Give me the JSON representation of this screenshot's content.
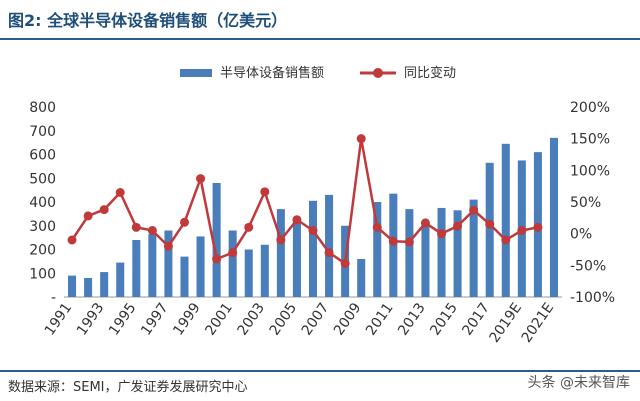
{
  "title": "图2:  全球半导体设备销售额（亿美元）",
  "source": "数据来源：SEMI，广发证券发展研究中心",
  "watermark": "头条 @未来智库",
  "colors": {
    "bar": "#4a7ebb",
    "line": "#c0393b",
    "grid": "#d9d9d9",
    "title": "#1f4e79"
  },
  "chart_data": {
    "type": "bar",
    "categories": [
      "1991",
      "1992",
      "1993",
      "1994",
      "1995",
      "1996",
      "1997",
      "1998",
      "1999",
      "2000",
      "2001",
      "2002",
      "2003",
      "2004",
      "2005",
      "2006",
      "2007",
      "2008",
      "2009",
      "2010",
      "2011",
      "2012",
      "2013",
      "2014",
      "2015",
      "2016",
      "2017",
      "2018",
      "2019E",
      "2020E",
      "2021E"
    ],
    "x_tick_labels": [
      "1991",
      "1993",
      "1995",
      "1997",
      "1999",
      "2001",
      "2003",
      "2005",
      "2007",
      "2009",
      "2011",
      "2013",
      "2015",
      "2017",
      "2019E",
      "2021E"
    ],
    "series": [
      {
        "name": "半导体设备销售额",
        "type": "bar",
        "axis": "left",
        "values": [
          90,
          80,
          105,
          145,
          240,
          265,
          280,
          170,
          255,
          480,
          280,
          200,
          220,
          370,
          330,
          405,
          430,
          300,
          160,
          400,
          435,
          370,
          315,
          375,
          365,
          410,
          565,
          645,
          575,
          610,
          670
        ]
      },
      {
        "name": "同比变动",
        "type": "line",
        "axis": "right",
        "values": [
          -10,
          28,
          38,
          65,
          10,
          5,
          -20,
          18,
          87,
          -40,
          -30,
          10,
          66,
          -10,
          22,
          5,
          -30,
          -47,
          150,
          10,
          -12,
          -13,
          17,
          0,
          12,
          37,
          15,
          -10,
          5,
          10,
          null
        ]
      }
    ],
    "y_left": {
      "ticks": [
        "-",
        "100",
        "200",
        "300",
        "400",
        "500",
        "600",
        "700",
        "800"
      ],
      "ylim": [
        0,
        800
      ]
    },
    "y_right": {
      "ticks": [
        "-100%",
        "-50%",
        "0%",
        "50%",
        "100%",
        "150%",
        "200%"
      ],
      "ylim": [
        -100,
        200
      ]
    },
    "legend_position": "top",
    "grid": false
  }
}
